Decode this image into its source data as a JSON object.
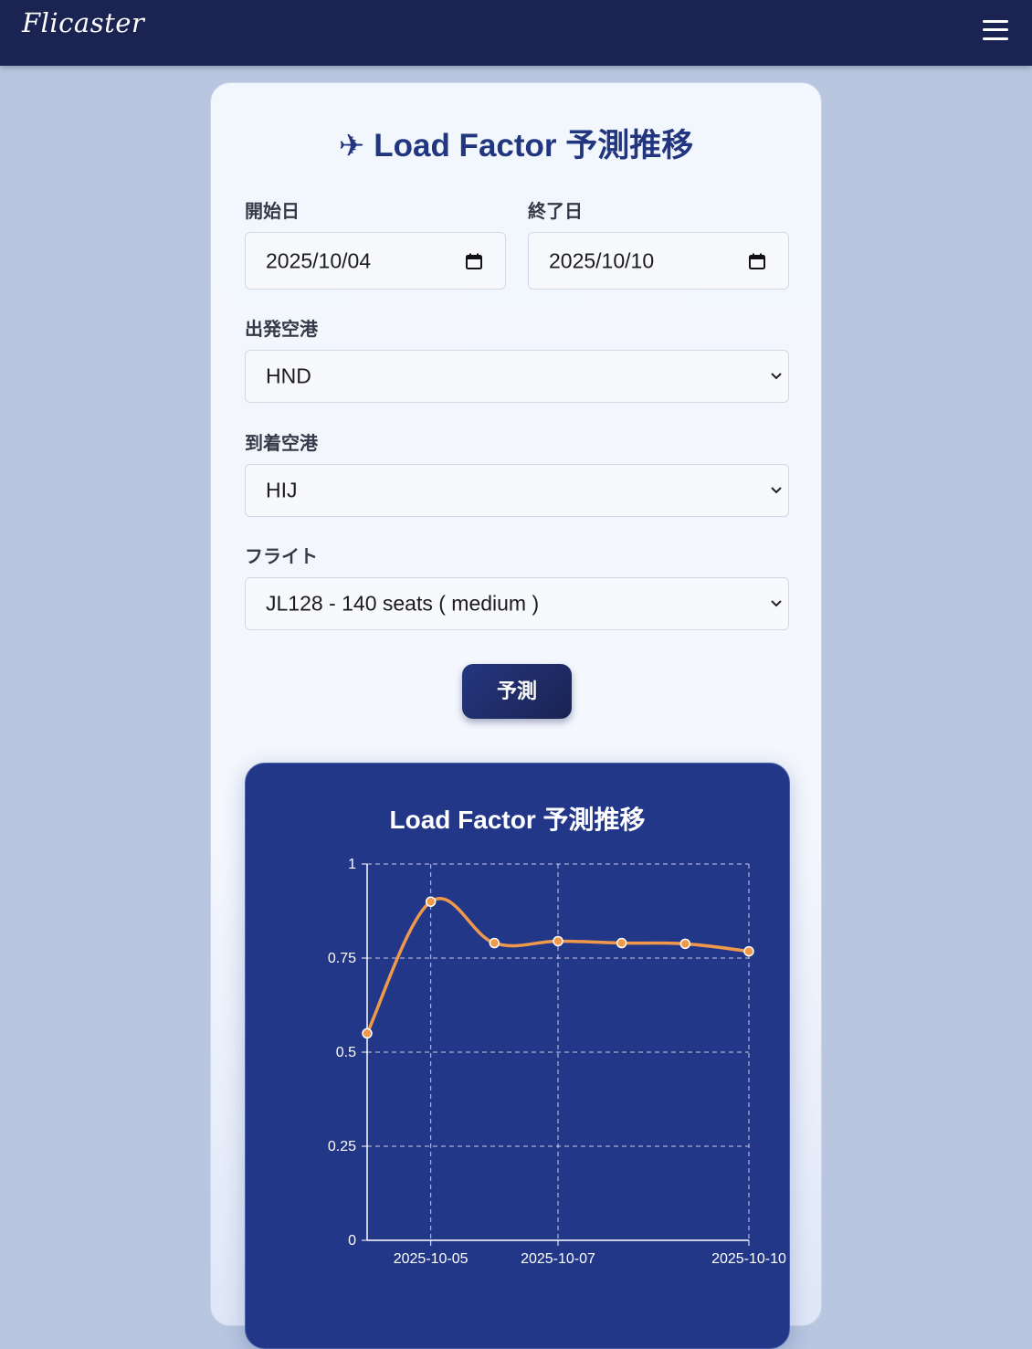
{
  "navbar": {
    "logo": "Flicaster",
    "menu_icon": "hamburger-menu-icon"
  },
  "form": {
    "title": "Load Factor 予測推移",
    "title_icon": "airplane-icon",
    "start_date": {
      "label": "開始日",
      "value": "2025/10/04",
      "icon": "calendar-icon"
    },
    "end_date": {
      "label": "終了日",
      "value": "2025/10/10",
      "icon": "calendar-icon"
    },
    "departure": {
      "label": "出発空港",
      "value": "HND",
      "icon": "chevron-down-icon"
    },
    "arrival": {
      "label": "到着空港",
      "value": "HIJ",
      "icon": "chevron-down-icon"
    },
    "flight": {
      "label": "フライト",
      "value": "JL128 - 140 seats ( medium )",
      "icon": "chevron-down-icon"
    },
    "submit_label": "予測"
  },
  "colors": {
    "navbar": "#1a2352",
    "background": "#b8c6e0",
    "accent": "#21367f",
    "chart_background": "#233789",
    "line": "#f0994a"
  },
  "chart_data": {
    "type": "line",
    "title": "Load Factor 予測推移",
    "xlabel": "",
    "ylabel": "",
    "x": [
      "2025-10-04",
      "2025-10-05",
      "2025-10-06",
      "2025-10-07",
      "2025-10-08",
      "2025-10-09",
      "2025-10-10"
    ],
    "series": [
      {
        "values": [
          0.55,
          0.9,
          0.79,
          0.795,
          0.79,
          0.788,
          0.768
        ]
      }
    ],
    "ylim": [
      0,
      1
    ],
    "y_ticks": [
      "0",
      "0.25",
      "0.5",
      "0.75",
      "1"
    ],
    "x_tick_labels": [
      "2025-10-05",
      "2025-10-07",
      "2025-10-10"
    ],
    "grid": true,
    "smooth": true,
    "markers": true
  }
}
